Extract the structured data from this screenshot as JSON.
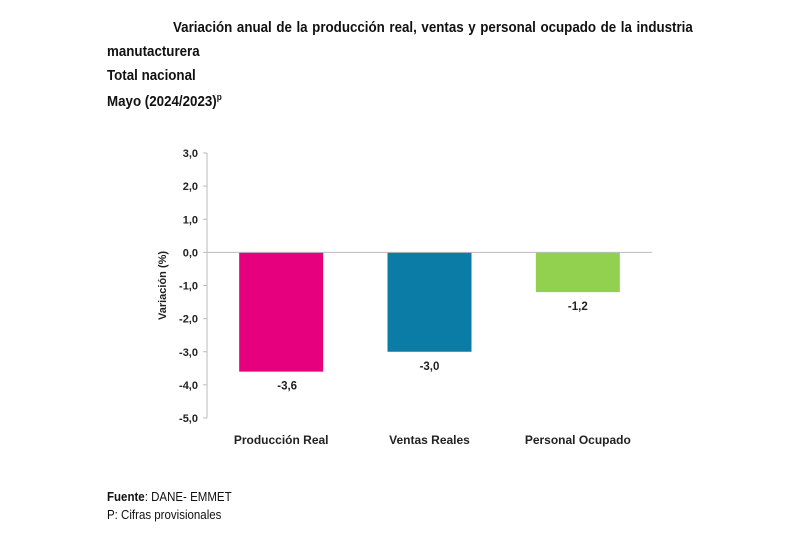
{
  "title": {
    "line1": "Variación anual de la producción real, ventas y personal ocupado de la industria",
    "line2": "manutacturera",
    "line3": "Total nacional",
    "line4": "Mayo (2024/2023)",
    "line4_sup": "p"
  },
  "footer": {
    "source_label": "Fuente",
    "source_value": ": DANE- EMMET",
    "note": "P: Cifras provisionales"
  },
  "chart_data": {
    "type": "bar",
    "title": "Variación anual de la producción real, ventas y personal ocupado de la industria manutacturera",
    "xlabel": "",
    "ylabel": "Variación (%)",
    "categories": [
      "Producción Real",
      "Ventas Reales",
      "Personal Ocupado"
    ],
    "values": [
      -3.6,
      -3.0,
      -1.2
    ],
    "data_labels": [
      "-3,6",
      "-3,0",
      "-1,2"
    ],
    "colors": [
      "#e6007e",
      "#0a7ca6",
      "#92d050"
    ],
    "ylim": [
      -5,
      3
    ],
    "yticks": [
      3,
      2,
      1,
      0,
      -1,
      -2,
      -3,
      -4,
      -5
    ],
    "ytick_labels": [
      "3,0",
      "2,0",
      "1,0",
      "0,0",
      "-1,0",
      "-2,0",
      "-3,0",
      "-4,0",
      "-5,0"
    ],
    "grid": false
  }
}
